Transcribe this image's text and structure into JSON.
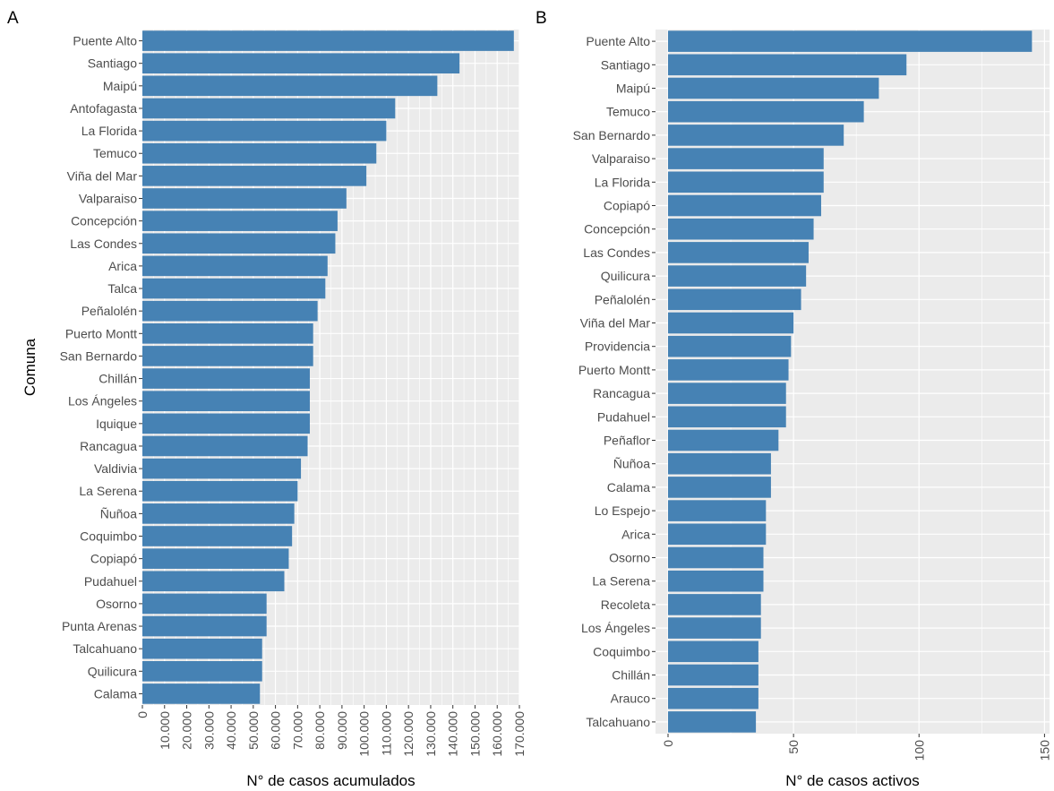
{
  "chart_data": [
    {
      "type": "bar",
      "orientation": "horizontal",
      "panel_tag": "A",
      "xlabel": "N° de casos acumulados",
      "ylabel": "Comuna",
      "xlim": [
        0,
        170000
      ],
      "tick_values": [
        0,
        10000,
        20000,
        30000,
        40000,
        50000,
        60000,
        70000,
        80000,
        90000,
        100000,
        110000,
        120000,
        130000,
        140000,
        150000,
        160000,
        170000
      ],
      "tick_labels": [
        "0",
        "10.000",
        "20.000",
        "30.000",
        "40.000",
        "50.000",
        "60.000",
        "70.000",
        "80.000",
        "90.000",
        "100.000",
        "110.000",
        "120.000",
        "130.000",
        "140.000",
        "150.000",
        "160.000",
        "170.000"
      ],
      "bar_color": "#4682b4",
      "panel_color": "#ebebeb",
      "grid": true,
      "categories": [
        "Puente Alto",
        "Santiago",
        "Maipú",
        "Antofagasta",
        "La Florida",
        "Temuco",
        "Viña del Mar",
        "Valparaiso",
        "Concepción",
        "Las Condes",
        "Arica",
        "Talca",
        "Peñalolén",
        "Puerto Montt",
        "San Bernardo",
        "Chillán",
        "Los Ángeles",
        "Iquique",
        "Rancagua",
        "Valdivia",
        "La Serena",
        "Ñuñoa",
        "Coquimbo",
        "Copiapó",
        "Pudahuel",
        "Osorno",
        "Punta Arenas",
        "Talcahuano",
        "Quilicura",
        "Calama"
      ],
      "values": [
        167500,
        143000,
        133000,
        114000,
        110000,
        105500,
        101000,
        92000,
        88000,
        87000,
        83500,
        82500,
        79000,
        77000,
        77000,
        75500,
        75500,
        75500,
        74500,
        71500,
        70000,
        68500,
        67500,
        66000,
        64000,
        56000,
        56000,
        54000,
        54000,
        53000
      ]
    },
    {
      "type": "bar",
      "orientation": "horizontal",
      "panel_tag": "B",
      "xlabel": "N° de casos activos",
      "ylabel": "",
      "xlim": [
        -5,
        152
      ],
      "tick_values": [
        0,
        50,
        100,
        150
      ],
      "tick_labels": [
        "0",
        "50",
        "100",
        "150"
      ],
      "bar_color": "#4682b4",
      "panel_color": "#ebebeb",
      "grid": true,
      "categories": [
        "Puente Alto",
        "Santiago",
        "Maipú",
        "Temuco",
        "San Bernardo",
        "Valparaiso",
        "La Florida",
        "Copiapó",
        "Concepción",
        "Las Condes",
        "Quilicura",
        "Peñalolén",
        "Viña del Mar",
        "Providencia",
        "Puerto Montt",
        "Rancagua",
        "Pudahuel",
        "Peñaflor",
        "Ñuñoa",
        "Calama",
        "Lo Espejo",
        "Arica",
        "Osorno",
        "La Serena",
        "Recoleta",
        "Los Ángeles",
        "Coquimbo",
        "Chillán",
        "Arauco",
        "Talcahuano"
      ],
      "values": [
        145,
        95,
        84,
        78,
        70,
        62,
        62,
        61,
        58,
        56,
        55,
        53,
        50,
        49,
        48,
        47,
        47,
        44,
        41,
        41,
        39,
        39,
        38,
        38,
        37,
        37,
        36,
        36,
        36,
        35
      ]
    }
  ]
}
